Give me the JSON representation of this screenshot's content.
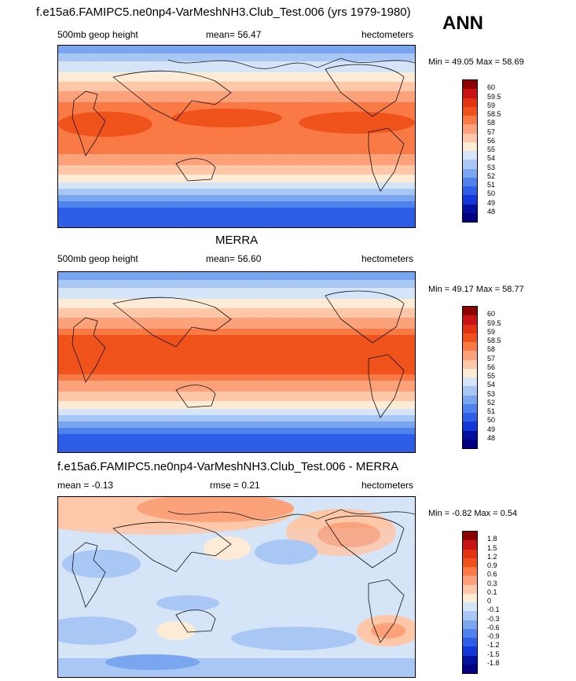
{
  "season": "ANN",
  "panels": [
    {
      "title": "f.e15a6.FAMIPC5.ne0np4-VarMeshNH3.Club_Test.006 (yrs 1979-1980)",
      "left_label": "500mb geop height",
      "center_label": "mean=  56.47",
      "right_label": "hectometers",
      "minmax": "Min =  49.05 Max =  58.69",
      "colorbar": {
        "labels": [
          "60",
          "59.5",
          "59",
          "58.5",
          "58",
          "57",
          "56",
          "55",
          "54",
          "53",
          "52",
          "51",
          "50",
          "49",
          "48"
        ],
        "colors": [
          "#8b0000",
          "#c81414",
          "#e23410",
          "#f0521c",
          "#fa7a46",
          "#fca27a",
          "#fdc7a8",
          "#fdebd6",
          "#d6e4f8",
          "#a9c7f4",
          "#7aa6ef",
          "#4f82ec",
          "#2d5ee8",
          "#1238d8",
          "#03129e",
          "#000080"
        ]
      }
    },
    {
      "title": "MERRA",
      "left_label": "500mb geop height",
      "center_label": "mean=  56.60",
      "right_label": "hectometers",
      "minmax": "Min =  49.17 Max =  58.77",
      "colorbar": {
        "labels": [
          "60",
          "59.5",
          "59",
          "58.5",
          "58",
          "57",
          "56",
          "55",
          "54",
          "53",
          "52",
          "51",
          "50",
          "49",
          "48"
        ],
        "colors": [
          "#8b0000",
          "#c81414",
          "#e23410",
          "#f0521c",
          "#fa7a46",
          "#fca27a",
          "#fdc7a8",
          "#fdebd6",
          "#d6e4f8",
          "#a9c7f4",
          "#7aa6ef",
          "#4f82ec",
          "#2d5ee8",
          "#1238d8",
          "#03129e",
          "#000080"
        ]
      }
    },
    {
      "title": "f.e15a6.FAMIPC5.ne0np4-VarMeshNH3.Club_Test.006 - MERRA",
      "left_label": "mean =  -0.13",
      "center_label": "rmse =   0.21",
      "right_label": "hectometers",
      "minmax": "Min =  -0.82 Max =   0.54",
      "colorbar": {
        "labels": [
          "1.8",
          "1.5",
          "1.2",
          "0.9",
          "0.6",
          "0.3",
          "0.1",
          "0",
          "-0.1",
          "-0.3",
          "-0.6",
          "-0.9",
          "-1.2",
          "-1.5",
          "-1.8"
        ],
        "colors": [
          "#8b0000",
          "#c81414",
          "#e23410",
          "#f0521c",
          "#fa7a46",
          "#fca27a",
          "#fdc7a8",
          "#fdebd6",
          "#d6e4f8",
          "#a9c7f4",
          "#7aa6ef",
          "#4f82ec",
          "#2d5ee8",
          "#1238d8",
          "#03129e",
          "#000080"
        ]
      }
    }
  ]
}
